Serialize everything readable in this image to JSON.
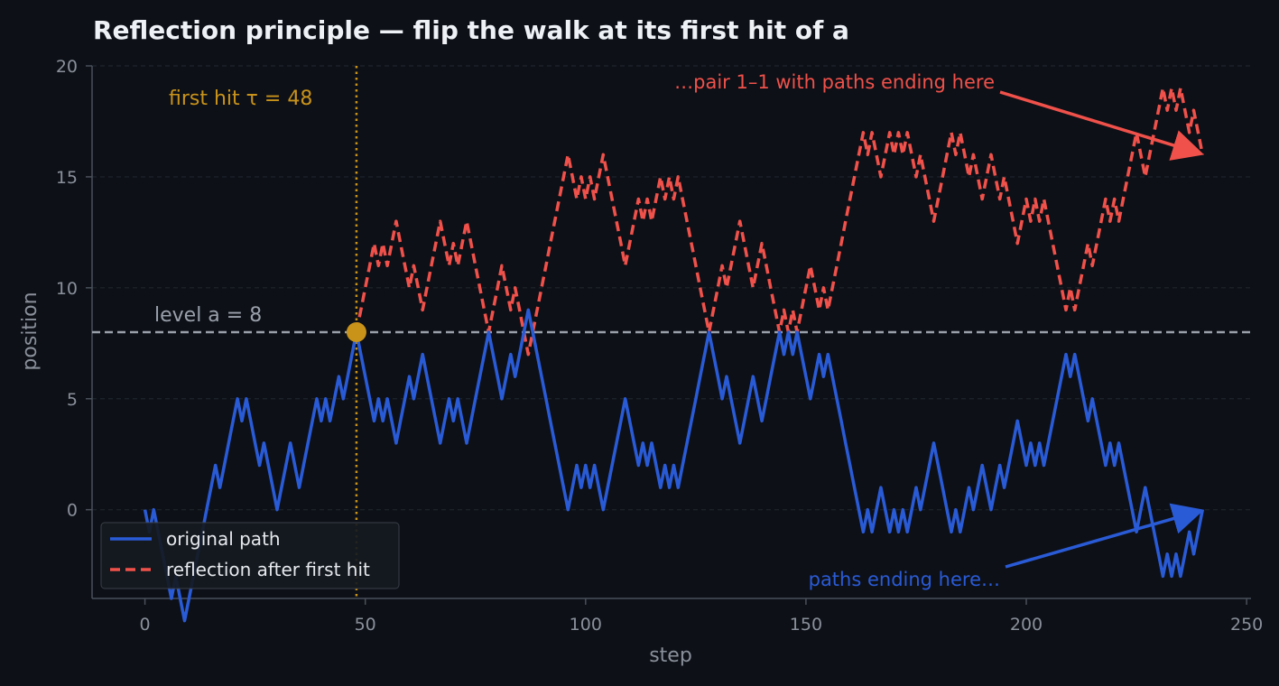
{
  "chart_data": {
    "type": "line",
    "title": "Reflection principle — flip the walk at its first hit of a",
    "xlabel": "step",
    "ylabel": "position",
    "xlim": [
      -12,
      251
    ],
    "ylim": [
      -4,
      20
    ],
    "xticks": [
      "0",
      "50",
      "100",
      "150",
      "200",
      "250"
    ],
    "yticks": [
      "0",
      "5",
      "10",
      "15",
      "20"
    ],
    "grid": "horizontal dashed",
    "level": 8,
    "first_hit": 48,
    "level_label": "level a = 8",
    "first_hit_label": "first hit τ = 48",
    "end_original": 0,
    "end_reflected": 16,
    "annotations": {
      "reflected_end": "…pair 1–1 with paths ending here",
      "original_end": "paths ending here…"
    },
    "legend": {
      "placement": "lower-left",
      "entries": [
        "original path",
        "reflection after first hit"
      ]
    },
    "series": [
      {
        "name": "original path",
        "color": "#2a5bd7",
        "style": "solid",
        "points": [
          [
            0,
            0
          ],
          [
            1,
            -1
          ],
          [
            2,
            0
          ],
          [
            3,
            -1
          ],
          [
            4,
            -2
          ],
          [
            5,
            -3
          ],
          [
            6,
            -4
          ],
          [
            7,
            -3
          ],
          [
            8,
            -4
          ],
          [
            9,
            -5
          ],
          [
            10,
            -4
          ],
          [
            11,
            -3
          ],
          [
            12,
            -2
          ],
          [
            13,
            -1
          ],
          [
            14,
            0
          ],
          [
            15,
            1
          ],
          [
            16,
            2
          ],
          [
            17,
            1
          ],
          [
            18,
            2
          ],
          [
            19,
            3
          ],
          [
            20,
            4
          ],
          [
            21,
            5
          ],
          [
            22,
            4
          ],
          [
            23,
            5
          ],
          [
            24,
            4
          ],
          [
            25,
            3
          ],
          [
            26,
            2
          ],
          [
            27,
            3
          ],
          [
            28,
            2
          ],
          [
            29,
            1
          ],
          [
            30,
            0
          ],
          [
            31,
            1
          ],
          [
            32,
            2
          ],
          [
            33,
            3
          ],
          [
            34,
            2
          ],
          [
            35,
            1
          ],
          [
            36,
            2
          ],
          [
            37,
            3
          ],
          [
            38,
            4
          ],
          [
            39,
            5
          ],
          [
            40,
            4
          ],
          [
            41,
            5
          ],
          [
            42,
            4
          ],
          [
            43,
            5
          ],
          [
            44,
            6
          ],
          [
            45,
            5
          ],
          [
            46,
            6
          ],
          [
            47,
            7
          ],
          [
            48,
            8
          ],
          [
            49,
            7
          ],
          [
            50,
            6
          ],
          [
            51,
            5
          ],
          [
            52,
            4
          ],
          [
            53,
            5
          ],
          [
            54,
            4
          ],
          [
            55,
            5
          ],
          [
            56,
            4
          ],
          [
            57,
            3
          ],
          [
            58,
            4
          ],
          [
            59,
            5
          ],
          [
            60,
            6
          ],
          [
            61,
            5
          ],
          [
            62,
            6
          ],
          [
            63,
            7
          ],
          [
            64,
            6
          ],
          [
            65,
            5
          ],
          [
            66,
            4
          ],
          [
            67,
            3
          ],
          [
            68,
            4
          ],
          [
            69,
            5
          ],
          [
            70,
            4
          ],
          [
            71,
            5
          ],
          [
            72,
            4
          ],
          [
            73,
            3
          ],
          [
            74,
            4
          ],
          [
            75,
            5
          ],
          [
            76,
            6
          ],
          [
            77,
            7
          ],
          [
            78,
            8
          ],
          [
            79,
            7
          ],
          [
            80,
            6
          ],
          [
            81,
            5
          ],
          [
            82,
            6
          ],
          [
            83,
            7
          ],
          [
            84,
            6
          ],
          [
            85,
            7
          ],
          [
            86,
            8
          ],
          [
            87,
            9
          ],
          [
            88,
            8
          ],
          [
            89,
            7
          ],
          [
            90,
            6
          ],
          [
            91,
            5
          ],
          [
            92,
            4
          ],
          [
            93,
            3
          ],
          [
            94,
            2
          ],
          [
            95,
            1
          ],
          [
            96,
            0
          ],
          [
            97,
            1
          ],
          [
            98,
            2
          ],
          [
            99,
            1
          ],
          [
            100,
            2
          ],
          [
            101,
            1
          ],
          [
            102,
            2
          ],
          [
            103,
            1
          ],
          [
            104,
            0
          ],
          [
            105,
            1
          ],
          [
            106,
            2
          ],
          [
            107,
            3
          ],
          [
            108,
            4
          ],
          [
            109,
            5
          ],
          [
            110,
            4
          ],
          [
            111,
            3
          ],
          [
            112,
            2
          ],
          [
            113,
            3
          ],
          [
            114,
            2
          ],
          [
            115,
            3
          ],
          [
            116,
            2
          ],
          [
            117,
            1
          ],
          [
            118,
            2
          ],
          [
            119,
            1
          ],
          [
            120,
            2
          ],
          [
            121,
            1
          ],
          [
            122,
            2
          ],
          [
            123,
            3
          ],
          [
            124,
            4
          ],
          [
            125,
            5
          ],
          [
            126,
            6
          ],
          [
            127,
            7
          ],
          [
            128,
            8
          ],
          [
            129,
            7
          ],
          [
            130,
            6
          ],
          [
            131,
            5
          ],
          [
            132,
            6
          ],
          [
            133,
            5
          ],
          [
            134,
            4
          ],
          [
            135,
            3
          ],
          [
            136,
            4
          ],
          [
            137,
            5
          ],
          [
            138,
            6
          ],
          [
            139,
            5
          ],
          [
            140,
            4
          ],
          [
            141,
            5
          ],
          [
            142,
            6
          ],
          [
            143,
            7
          ],
          [
            144,
            8
          ],
          [
            145,
            7
          ],
          [
            146,
            8
          ],
          [
            147,
            7
          ],
          [
            148,
            8
          ],
          [
            149,
            7
          ],
          [
            150,
            6
          ],
          [
            151,
            5
          ],
          [
            152,
            6
          ],
          [
            153,
            7
          ],
          [
            154,
            6
          ],
          [
            155,
            7
          ],
          [
            156,
            6
          ],
          [
            157,
            5
          ],
          [
            158,
            4
          ],
          [
            159,
            3
          ],
          [
            160,
            2
          ],
          [
            161,
            1
          ],
          [
            162,
            0
          ],
          [
            163,
            -1
          ],
          [
            164,
            0
          ],
          [
            165,
            -1
          ],
          [
            166,
            0
          ],
          [
            167,
            1
          ],
          [
            168,
            0
          ],
          [
            169,
            -1
          ],
          [
            170,
            0
          ],
          [
            171,
            -1
          ],
          [
            172,
            0
          ],
          [
            173,
            -1
          ],
          [
            174,
            0
          ],
          [
            175,
            1
          ],
          [
            176,
            0
          ],
          [
            177,
            1
          ],
          [
            178,
            2
          ],
          [
            179,
            3
          ],
          [
            180,
            2
          ],
          [
            181,
            1
          ],
          [
            182,
            0
          ],
          [
            183,
            -1
          ],
          [
            184,
            0
          ],
          [
            185,
            -1
          ],
          [
            186,
            0
          ],
          [
            187,
            1
          ],
          [
            188,
            0
          ],
          [
            189,
            1
          ],
          [
            190,
            2
          ],
          [
            191,
            1
          ],
          [
            192,
            0
          ],
          [
            193,
            1
          ],
          [
            194,
            2
          ],
          [
            195,
            1
          ],
          [
            196,
            2
          ],
          [
            197,
            3
          ],
          [
            198,
            4
          ],
          [
            199,
            3
          ],
          [
            200,
            2
          ],
          [
            201,
            3
          ],
          [
            202,
            2
          ],
          [
            203,
            3
          ],
          [
            204,
            2
          ],
          [
            205,
            3
          ],
          [
            206,
            4
          ],
          [
            207,
            5
          ],
          [
            208,
            6
          ],
          [
            209,
            7
          ],
          [
            210,
            6
          ],
          [
            211,
            7
          ],
          [
            212,
            6
          ],
          [
            213,
            5
          ],
          [
            214,
            4
          ],
          [
            215,
            5
          ],
          [
            216,
            4
          ],
          [
            217,
            3
          ],
          [
            218,
            2
          ],
          [
            219,
            3
          ],
          [
            220,
            2
          ],
          [
            221,
            3
          ],
          [
            222,
            2
          ],
          [
            223,
            1
          ],
          [
            224,
            0
          ],
          [
            225,
            -1
          ],
          [
            226,
            0
          ],
          [
            227,
            1
          ],
          [
            228,
            0
          ],
          [
            229,
            -1
          ],
          [
            230,
            -2
          ],
          [
            231,
            -3
          ],
          [
            232,
            -2
          ],
          [
            233,
            -3
          ],
          [
            234,
            -2
          ],
          [
            235,
            -3
          ],
          [
            236,
            -2
          ],
          [
            237,
            -1
          ],
          [
            238,
            -2
          ],
          [
            239,
            -1
          ],
          [
            240,
            0
          ]
        ]
      },
      {
        "name": "reflection after first hit",
        "color": "#f0514a",
        "style": "dashed",
        "mirror_of": "original path",
        "from_step": 48
      }
    ]
  }
}
